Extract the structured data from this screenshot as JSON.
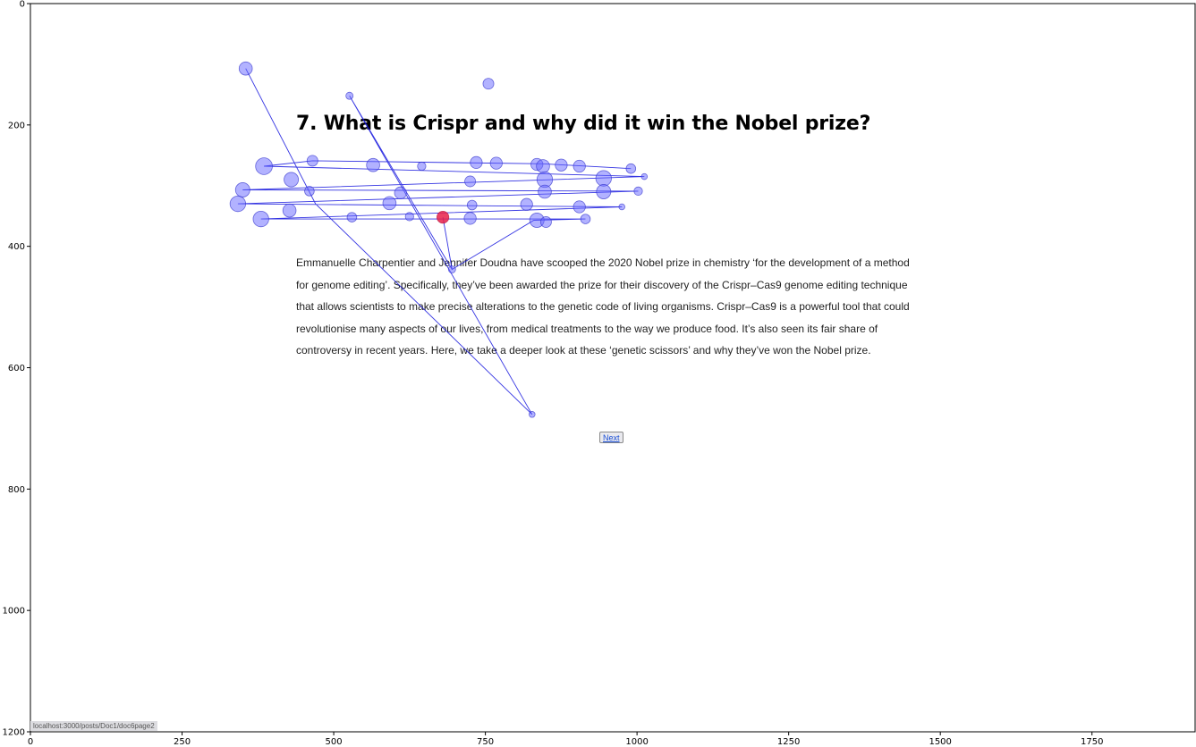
{
  "page": {
    "heading": "7. What is Crispr and why did it win the Nobel prize?",
    "paragraph_lines": [
      "Emmanuelle Charpentier and Jennifer Doudna have scooped the 2020 Nobel prize in chemistry ‘for the development of a method",
      "for genome editing’. Specifically, they’ve been awarded the prize for their discovery of the Crispr–Cas9 genome editing technique",
      "that allows scientists to make precise alterations to the genetic code of living organisms. Crispr–Cas9 is a powerful tool that could",
      "revolutionise many aspects of our lives, from medical treatments to the way we produce food. It’s also seen its fair share of",
      "controversy in recent years. Here, we take a deeper look at these ‘genetic scissors’ and why they’ve won the Nobel prize."
    ],
    "next_label": "Next",
    "status_url": "localhost:3000/posts/Doc1/doc6page2"
  },
  "chart_data": {
    "type": "scatter",
    "title": "",
    "xlabel": "",
    "ylabel": "",
    "xlim": [
      0,
      1920
    ],
    "ylim": [
      1200,
      0
    ],
    "x_ticks": [
      0,
      250,
      500,
      750,
      1000,
      1250,
      1500,
      1750
    ],
    "y_ticks": [
      0,
      200,
      400,
      600,
      800,
      1000,
      1200
    ],
    "grid": false,
    "colors": {
      "fixation": "#6666ff",
      "fixation_edge": "#3333cc",
      "path": "#1111dd",
      "current": "#e8204a"
    },
    "fixations": [
      {
        "x": 355,
        "y": 107,
        "r": 11
      },
      {
        "x": 526,
        "y": 152,
        "r": 6
      },
      {
        "x": 695,
        "y": 438,
        "r": 6
      },
      {
        "x": 827,
        "y": 677,
        "r": 5
      },
      {
        "x": 755,
        "y": 132,
        "r": 9
      },
      {
        "x": 385,
        "y": 268,
        "r": 14
      },
      {
        "x": 465,
        "y": 259,
        "r": 9
      },
      {
        "x": 565,
        "y": 266,
        "r": 11
      },
      {
        "x": 645,
        "y": 268,
        "r": 7
      },
      {
        "x": 735,
        "y": 262,
        "r": 10
      },
      {
        "x": 768,
        "y": 263,
        "r": 10
      },
      {
        "x": 835,
        "y": 265,
        "r": 10
      },
      {
        "x": 845,
        "y": 268,
        "r": 11
      },
      {
        "x": 875,
        "y": 266,
        "r": 10
      },
      {
        "x": 905,
        "y": 268,
        "r": 10
      },
      {
        "x": 990,
        "y": 272,
        "r": 8
      },
      {
        "x": 1012,
        "y": 285,
        "r": 5
      },
      {
        "x": 430,
        "y": 290,
        "r": 12
      },
      {
        "x": 725,
        "y": 293,
        "r": 9
      },
      {
        "x": 848,
        "y": 290,
        "r": 13
      },
      {
        "x": 945,
        "y": 288,
        "r": 13
      },
      {
        "x": 350,
        "y": 307,
        "r": 12
      },
      {
        "x": 460,
        "y": 309,
        "r": 8
      },
      {
        "x": 610,
        "y": 312,
        "r": 10
      },
      {
        "x": 848,
        "y": 310,
        "r": 11
      },
      {
        "x": 945,
        "y": 310,
        "r": 12
      },
      {
        "x": 1002,
        "y": 309,
        "r": 7
      },
      {
        "x": 342,
        "y": 330,
        "r": 13
      },
      {
        "x": 592,
        "y": 329,
        "r": 11
      },
      {
        "x": 728,
        "y": 332,
        "r": 8
      },
      {
        "x": 818,
        "y": 331,
        "r": 10
      },
      {
        "x": 905,
        "y": 335,
        "r": 10
      },
      {
        "x": 975,
        "y": 335,
        "r": 5
      },
      {
        "x": 380,
        "y": 355,
        "r": 13
      },
      {
        "x": 427,
        "y": 341,
        "r": 11
      },
      {
        "x": 530,
        "y": 352,
        "r": 8
      },
      {
        "x": 625,
        "y": 351,
        "r": 7
      },
      {
        "x": 725,
        "y": 354,
        "r": 10
      },
      {
        "x": 835,
        "y": 357,
        "r": 12
      },
      {
        "x": 850,
        "y": 360,
        "r": 9
      },
      {
        "x": 915,
        "y": 355,
        "r": 8
      },
      {
        "x": 680,
        "y": 352,
        "r": 10,
        "current": true
      }
    ],
    "scanpath": [
      [
        355,
        107
      ],
      [
        470,
        330
      ],
      [
        827,
        677
      ],
      [
        526,
        152
      ],
      [
        695,
        438
      ],
      [
        680,
        352
      ],
      [
        695,
        438
      ],
      [
        830,
        357
      ],
      [
        915,
        355
      ],
      [
        380,
        355
      ],
      [
        975,
        335
      ],
      [
        342,
        330
      ],
      [
        1002,
        309
      ],
      [
        350,
        307
      ],
      [
        1012,
        285
      ],
      [
        385,
        268
      ],
      [
        465,
        259
      ],
      [
        845,
        264
      ],
      [
        990,
        272
      ]
    ]
  }
}
